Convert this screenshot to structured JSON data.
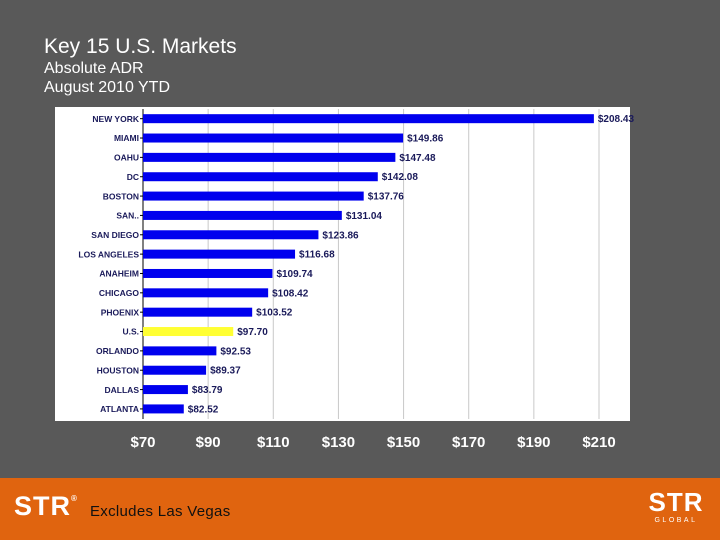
{
  "header": {
    "title": "Key 15 U.S. Markets",
    "subtitle_1": "Absolute ADR",
    "subtitle_2": "August 2010 YTD"
  },
  "footer": {
    "note": "Excludes Las Vegas",
    "logo_left": "STR",
    "logo_right_main": "STR",
    "logo_right_sub": "GLOBAL"
  },
  "colors": {
    "bar": "#0000ee",
    "highlight": "#ffff33",
    "panel": "#ffffff",
    "grid": "#c8c8c8",
    "footer": "#e0640f"
  },
  "chart_data": {
    "type": "bar",
    "orientation": "horizontal",
    "title": "Key 15 U.S. Markets",
    "subtitle": "Absolute ADR August 2010 YTD",
    "categories": [
      "NEW YORK",
      "MIAMI",
      "OAHU",
      "DC",
      "BOSTON",
      "SAN..",
      "SAN DIEGO",
      "LOS ANGELES",
      "ANAHEIM",
      "CHICAGO",
      "PHOENIX",
      "U.S.",
      "ORLANDO",
      "HOUSTON",
      "DALLAS",
      "ATLANTA"
    ],
    "values": [
      208.43,
      149.86,
      147.48,
      142.08,
      137.76,
      131.04,
      123.86,
      116.68,
      109.74,
      108.42,
      103.52,
      97.7,
      92.53,
      89.37,
      83.79,
      82.52
    ],
    "value_labels": [
      "$208.43",
      "$149.86",
      "$147.48",
      "$142.08",
      "$137.76",
      "$131.04",
      "$123.86",
      "$116.68",
      "$109.74",
      "$108.42",
      "$103.52",
      "$97.70",
      "$92.53",
      "$89.37",
      "$83.79",
      "$82.52"
    ],
    "highlight": [
      "U.S."
    ],
    "xlim": [
      70,
      210
    ],
    "xticks": [
      70,
      90,
      110,
      130,
      150,
      170,
      190,
      210
    ],
    "xtick_labels": [
      "$70",
      "$90",
      "$110",
      "$130",
      "$150",
      "$170",
      "$190",
      "$210"
    ],
    "grid": true,
    "xlabel": "",
    "ylabel": ""
  }
}
